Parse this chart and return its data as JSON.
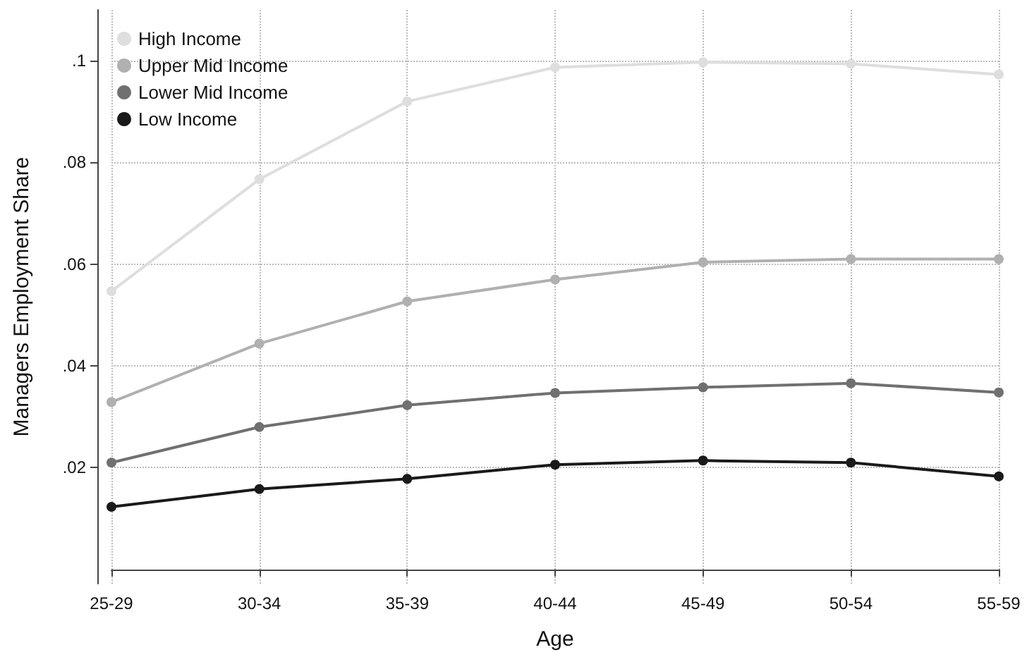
{
  "chart_data": {
    "type": "line",
    "xlabel": "Age",
    "ylabel": "Managers Employment Share",
    "categories": [
      "25-29",
      "30-34",
      "35-39",
      "40-44",
      "45-49",
      "50-54",
      "55-59"
    ],
    "series": [
      {
        "name": "High Income",
        "color": "#dedede",
        "values": [
          0.0547,
          0.0767,
          0.092,
          0.0987,
          0.0997,
          0.0994,
          0.0973
        ]
      },
      {
        "name": "Upper Mid Income",
        "color": "#b0b0b0",
        "values": [
          0.0329,
          0.0444,
          0.0527,
          0.057,
          0.0604,
          0.061,
          0.061
        ]
      },
      {
        "name": "Lower Mid Income",
        "color": "#707070",
        "values": [
          0.021,
          0.028,
          0.0323,
          0.0347,
          0.0358,
          0.0366,
          0.0348
        ]
      },
      {
        "name": "Low Income",
        "color": "#1a1a1a",
        "values": [
          0.0123,
          0.0158,
          0.0178,
          0.0206,
          0.0214,
          0.021,
          0.0183
        ]
      }
    ],
    "ylim": [
      -0.0028,
      0.11
    ],
    "yticks": [
      {
        "value": 0.02,
        "label": ".02"
      },
      {
        "value": 0.04,
        "label": ".04"
      },
      {
        "value": 0.06,
        "label": ".06"
      },
      {
        "value": 0.08,
        "label": ".08"
      },
      {
        "value": 0.1,
        "label": ".1"
      }
    ],
    "grid": true,
    "legend": "top left",
    "marker": "circle",
    "line_style": "solid"
  }
}
